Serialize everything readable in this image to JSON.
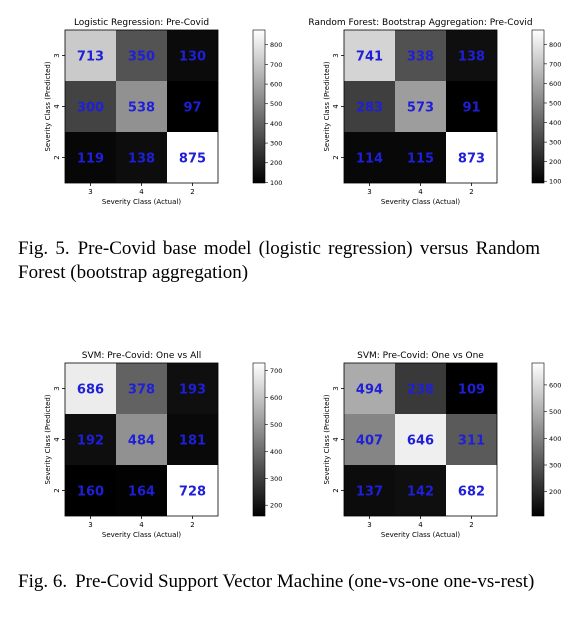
{
  "figures": [
    {
      "caption_number": "Fig. 5.",
      "caption_text": "Pre-Covid base model (logistic regression) versus Random Forest (bootstrap aggregation)",
      "panels": [
        {
          "title": "Logistic Regression: Pre-Covid",
          "xlabel": "Severity Class (Actual)",
          "ylabel": "Severity Class (Predicted)",
          "x_ticks": [
            "3",
            "4",
            "2"
          ],
          "y_ticks": [
            "3",
            "4",
            "2"
          ],
          "matrix": [
            [
              713,
              350,
              130
            ],
            [
              300,
              538,
              97
            ],
            [
              119,
              138,
              875
            ]
          ],
          "colorbar_ticks": [
            100,
            200,
            300,
            400,
            500,
            600,
            700,
            800
          ],
          "vmin": 97,
          "vmax": 875
        },
        {
          "title": "Random Forest: Bootstrap Aggregation: Pre-Covid",
          "xlabel": "Severity Class (Actual)",
          "ylabel": "Severity Class (Predicted)",
          "x_ticks": [
            "3",
            "4",
            "2"
          ],
          "y_ticks": [
            "3",
            "4",
            "2"
          ],
          "matrix": [
            [
              741,
              338,
              138
            ],
            [
              283,
              573,
              91
            ],
            [
              114,
              115,
              873
            ]
          ],
          "colorbar_ticks": [
            100,
            200,
            300,
            400,
            500,
            600,
            700,
            800
          ],
          "vmin": 91,
          "vmax": 873
        }
      ]
    },
    {
      "caption_number": "Fig. 6.",
      "caption_text": "Pre-Covid Support Vector Machine (one-vs-one  one-vs-rest)",
      "panels": [
        {
          "title": "SVM: Pre-Covid: One vs All",
          "xlabel": "Severity Class (Actual)",
          "ylabel": "Severity Class (Predicted)",
          "x_ticks": [
            "3",
            "4",
            "2"
          ],
          "y_ticks": [
            "3",
            "4",
            "2"
          ],
          "matrix": [
            [
              686,
              378,
              193
            ],
            [
              192,
              484,
              181
            ],
            [
              160,
              164,
              728
            ]
          ],
          "colorbar_ticks": [
            200,
            300,
            400,
            500,
            600,
            700
          ],
          "vmin": 160,
          "vmax": 728
        },
        {
          "title": "SVM: Pre-Covid: One vs One",
          "xlabel": "Severity Class (Actual)",
          "ylabel": "Severity Class (Predicted)",
          "x_ticks": [
            "3",
            "4",
            "2"
          ],
          "y_ticks": [
            "3",
            "4",
            "2"
          ],
          "matrix": [
            [
              494,
              238,
              109
            ],
            [
              407,
              646,
              311
            ],
            [
              137,
              142,
              682
            ]
          ],
          "colorbar_ticks": [
            200,
            300,
            400,
            500,
            600
          ],
          "vmin": 109,
          "vmax": 682
        }
      ]
    }
  ],
  "chart_data": [
    {
      "type": "heatmap",
      "title": "Logistic Regression: Pre-Covid",
      "xlabel": "Severity Class (Actual)",
      "ylabel": "Severity Class (Predicted)",
      "x_categories": [
        "3",
        "4",
        "2"
      ],
      "y_categories": [
        "3",
        "4",
        "2"
      ],
      "values": [
        [
          713,
          350,
          130
        ],
        [
          300,
          538,
          97
        ],
        [
          119,
          138,
          875
        ]
      ],
      "colormap": "gray",
      "colorbar_range": [
        97,
        875
      ]
    },
    {
      "type": "heatmap",
      "title": "Random Forest: Bootstrap Aggregation: Pre-Covid",
      "xlabel": "Severity Class (Actual)",
      "ylabel": "Severity Class (Predicted)",
      "x_categories": [
        "3",
        "4",
        "2"
      ],
      "y_categories": [
        "3",
        "4",
        "2"
      ],
      "values": [
        [
          741,
          338,
          138
        ],
        [
          283,
          573,
          91
        ],
        [
          114,
          115,
          873
        ]
      ],
      "colormap": "gray",
      "colorbar_range": [
        91,
        873
      ]
    },
    {
      "type": "heatmap",
      "title": "SVM: Pre-Covid: One vs All",
      "xlabel": "Severity Class (Actual)",
      "ylabel": "Severity Class (Predicted)",
      "x_categories": [
        "3",
        "4",
        "2"
      ],
      "y_categories": [
        "3",
        "4",
        "2"
      ],
      "values": [
        [
          686,
          378,
          193
        ],
        [
          192,
          484,
          181
        ],
        [
          160,
          164,
          728
        ]
      ],
      "colormap": "gray",
      "colorbar_range": [
        160,
        728
      ]
    },
    {
      "type": "heatmap",
      "title": "SVM: Pre-Covid: One vs One",
      "xlabel": "Severity Class (Actual)",
      "ylabel": "Severity Class (Predicted)",
      "x_categories": [
        "3",
        "4",
        "2"
      ],
      "y_categories": [
        "3",
        "4",
        "2"
      ],
      "values": [
        [
          494,
          238,
          109
        ],
        [
          407,
          646,
          311
        ],
        [
          137,
          142,
          682
        ]
      ],
      "colormap": "gray",
      "colorbar_range": [
        109,
        682
      ]
    }
  ],
  "style": {
    "annotation_color": "#1f1fd8",
    "axis_color": "#000000"
  }
}
